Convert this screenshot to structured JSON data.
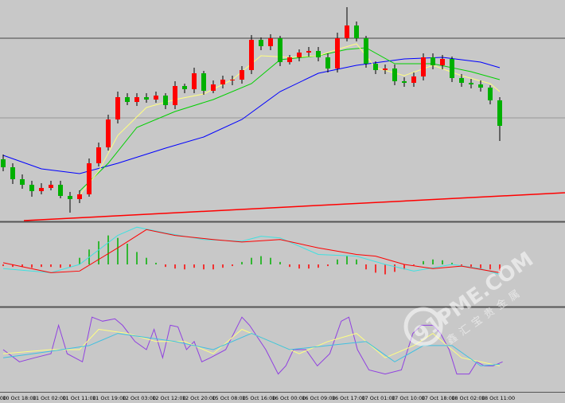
{
  "chart_data": [
    {
      "type": "candlestick",
      "ylim": [
        0,
        277
      ],
      "up_color": "#ff0000",
      "down_color": "#00b000",
      "wick_color": "#000000",
      "open": [
        77,
        67,
        52,
        45,
        37,
        41,
        45,
        31,
        27,
        33,
        72,
        92,
        127,
        155,
        149,
        155,
        152,
        157,
        145,
        169,
        165,
        185,
        163,
        171,
        177,
        177,
        189,
        227,
        219,
        229,
        199,
        205,
        211,
        213,
        205,
        191,
        229,
        245,
        229,
        197,
        189,
        191,
        175,
        173,
        181,
        205,
        195,
        203,
        179,
        173,
        171,
        167,
        151
      ],
      "high": [
        83,
        72,
        58,
        50,
        47,
        50,
        50,
        36,
        38,
        78,
        98,
        133,
        162,
        160,
        160,
        160,
        162,
        160,
        175,
        172,
        192,
        188,
        176,
        182,
        182,
        194,
        233,
        230,
        234,
        232,
        208,
        215,
        218,
        218,
        210,
        236,
        268,
        250,
        232,
        200,
        196,
        196,
        180,
        186,
        210,
        210,
        208,
        206,
        184,
        178,
        176,
        170,
        155
      ],
      "low": [
        62,
        46,
        40,
        30,
        33,
        38,
        28,
        10,
        22,
        30,
        68,
        88,
        122,
        145,
        144,
        148,
        148,
        140,
        140,
        160,
        160,
        158,
        160,
        166,
        170,
        172,
        184,
        214,
        214,
        194,
        196,
        200,
        206,
        200,
        186,
        186,
        225,
        225,
        192,
        184,
        184,
        170,
        168,
        168,
        176,
        190,
        190,
        174,
        168,
        166,
        162,
        146,
        100
      ],
      "close": [
        67,
        52,
        45,
        37,
        41,
        45,
        31,
        27,
        33,
        72,
        92,
        127,
        155,
        149,
        155,
        152,
        157,
        145,
        169,
        165,
        185,
        163,
        171,
        177,
        177,
        189,
        227,
        219,
        229,
        199,
        205,
        211,
        213,
        205,
        191,
        229,
        245,
        229,
        197,
        189,
        191,
        175,
        173,
        181,
        205,
        195,
        203,
        179,
        173,
        171,
        167,
        151,
        119
      ],
      "series": [
        {
          "color": "#0000ff",
          "x": [
            0,
            4,
            8,
            12,
            17,
            21,
            25,
            29,
            33,
            37,
            42,
            46,
            50,
            52
          ],
          "values": [
            82,
            65,
            59,
            72,
            91,
            105,
            127,
            162,
            185,
            195,
            203,
            205,
            199,
            192
          ]
        },
        {
          "color": "#00d000",
          "x": [
            8,
            11,
            14,
            18,
            22,
            26,
            29,
            33,
            36,
            38,
            41,
            45,
            49,
            52
          ],
          "values": [
            37,
            72,
            117,
            137,
            152,
            172,
            202,
            207,
            215,
            217,
            197,
            197,
            187,
            177
          ]
        },
        {
          "color": "#ffff80",
          "x": [
            8,
            10,
            12,
            15,
            18,
            21,
            24,
            27,
            30,
            33,
            35,
            37,
            39,
            42,
            45,
            48,
            51,
            52
          ],
          "values": [
            32,
            62,
            107,
            142,
            152,
            159,
            177,
            207,
            205,
            207,
            215,
            222,
            192,
            182,
            195,
            182,
            172,
            162
          ]
        }
      ],
      "trendline": {
        "color": "#ff0000",
        "values": [
          0,
          35
        ]
      },
      "hlines": [
        229,
        129
      ]
    },
    {
      "type": "macd",
      "ylim": [
        -50,
        50
      ],
      "up_color": "#00b000",
      "down_color": "#ff0000",
      "values": [
        -2,
        -3,
        -3,
        -4,
        -3,
        -3,
        -4,
        -3,
        8,
        18,
        28,
        35,
        32,
        25,
        15,
        8,
        2,
        -3,
        -5,
        -6,
        -4,
        -6,
        -6,
        -4,
        -2,
        3,
        8,
        10,
        8,
        3,
        -3,
        -5,
        -5,
        -4,
        -2,
        6,
        10,
        6,
        -6,
        -10,
        -12,
        -9,
        -6,
        -1,
        4,
        6,
        5,
        2,
        -2,
        -4,
        -5,
        -6,
        -8
      ],
      "series": [
        {
          "color": "#40e0e0",
          "x": [
            0,
            5,
            8,
            12,
            14,
            17,
            21,
            25,
            27,
            29,
            33,
            37,
            40,
            43,
            47,
            50,
            52
          ],
          "values": [
            -5,
            -10,
            0,
            35,
            45,
            38,
            30,
            28,
            34,
            32,
            12,
            10,
            0,
            -8,
            0,
            -5,
            -12
          ]
        },
        {
          "color": "#ff0000",
          "x": [
            0,
            5,
            8,
            12,
            15,
            18,
            22,
            25,
            29,
            33,
            37,
            39,
            42,
            45,
            48,
            52
          ],
          "values": [
            2,
            -10,
            -8,
            20,
            42,
            35,
            30,
            27,
            30,
            20,
            12,
            10,
            0,
            -5,
            -2,
            -10
          ]
        }
      ]
    },
    {
      "type": "stochastic",
      "ylim": [
        0,
        100
      ],
      "series": [
        {
          "color": "#9040e0",
          "x": [
            0,
            1.7,
            3.3,
            5,
            5.8,
            6.7,
            8.3,
            9.3,
            10.4,
            11.7,
            12.5,
            13.8,
            15,
            15.8,
            16.7,
            17.5,
            18.3,
            19.2,
            20,
            20.8,
            21.7,
            23.3,
            25,
            25.8,
            27.5,
            28.8,
            29.6,
            30.4,
            31.7,
            32.9,
            34.2,
            35.4,
            36.2,
            37.1,
            38.3,
            40,
            41.7,
            42.9,
            43.8,
            45,
            45.8,
            46.7,
            47.5,
            48.8,
            49.6,
            50.4,
            51.3,
            52.3
          ],
          "values": [
            50,
            35,
            40,
            45,
            80,
            45,
            35,
            90,
            85,
            88,
            80,
            60,
            50,
            75,
            40,
            80,
            78,
            50,
            60,
            35,
            40,
            50,
            90,
            80,
            50,
            20,
            30,
            50,
            50,
            30,
            45,
            85,
            90,
            50,
            25,
            20,
            25,
            70,
            80,
            80,
            70,
            50,
            20,
            20,
            35,
            30,
            30,
            35
          ]
        },
        {
          "color": "#ffff80",
          "x": [
            0,
            5,
            8,
            10,
            13,
            16,
            19,
            22,
            25,
            28,
            31,
            34,
            37,
            40,
            43,
            45,
            48,
            52
          ],
          "values": [
            45,
            50,
            50,
            75,
            70,
            60,
            60,
            45,
            75,
            60,
            45,
            60,
            70,
            40,
            55,
            70,
            40,
            30
          ]
        },
        {
          "color": "#40c0e0",
          "x": [
            0,
            5,
            9,
            12,
            15,
            18,
            22,
            26,
            30,
            34,
            38,
            41,
            44,
            47,
            50,
            52
          ],
          "values": [
            40,
            48,
            55,
            70,
            65,
            60,
            50,
            70,
            50,
            55,
            60,
            35,
            55,
            55,
            30,
            32
          ]
        }
      ],
      "categories": [
        "00",
        "10 Oct 18:00",
        "11 Oct 02:00",
        "11 Oct 11:00",
        "11 Oct 19:00",
        "12 Oct 03:00",
        "12 Oct 12:00",
        "12 Oct 20:00",
        "15 Oct 08:00",
        "15 Oct 16:00",
        "16 Oct 00:00",
        "16 Oct 09:00",
        "16 Oct 17:00",
        "17 Oct 01:00",
        "17 Oct 10:00",
        "17 Oct 18:00",
        "18 Oct 02:00",
        "18 Oct 11:00"
      ]
    }
  ],
  "watermark": {
    "text": "91PME.COM",
    "subtext": "鑫汇宝贵金属"
  }
}
